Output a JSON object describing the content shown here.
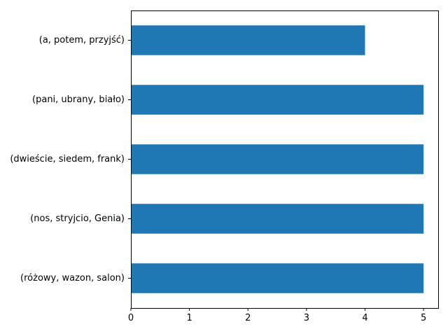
{
  "chart_data": {
    "type": "bar",
    "orientation": "horizontal",
    "title": "",
    "xlabel": "",
    "ylabel": "",
    "categories": [
      "(a, potem, przyjść)",
      "(pani, ubrany, biało)",
      "(dwieście, siedem, frank)",
      "(nos, stryjcio, Genia)",
      "(różowy, wazon, salon)"
    ],
    "values": [
      4,
      5,
      5,
      5,
      5
    ],
    "xlim": [
      0,
      5.25
    ],
    "xticks": [
      "0",
      "1",
      "2",
      "3",
      "4",
      "5"
    ],
    "grid": false,
    "bar_color": "#1f77b4"
  }
}
